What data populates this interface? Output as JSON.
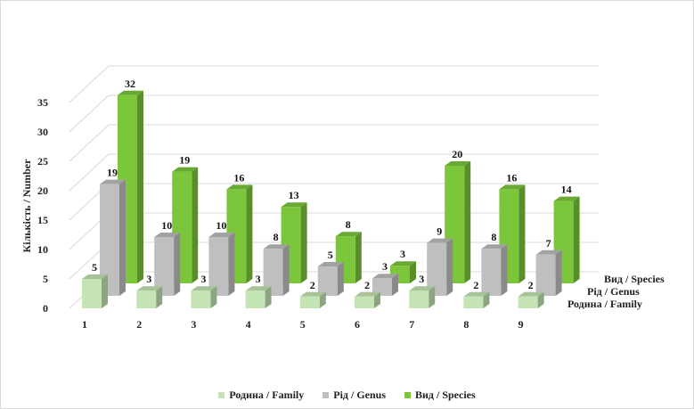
{
  "chart_data": {
    "type": "bar",
    "categories": [
      "1",
      "2",
      "3",
      "4",
      "5",
      "6",
      "7",
      "8",
      "9"
    ],
    "series": [
      {
        "name": "Родина / Family",
        "values": [
          5,
          3,
          3,
          3,
          2,
          2,
          3,
          2,
          2
        ],
        "color": "#c4e4b4"
      },
      {
        "name": "Рід / Genus",
        "values": [
          19,
          10,
          10,
          8,
          5,
          3,
          9,
          8,
          7
        ],
        "color": "#bfbfbf"
      },
      {
        "name": "Вид / Species",
        "values": [
          32,
          19,
          16,
          13,
          8,
          3,
          20,
          16,
          14
        ],
        "color": "#7cc63c"
      }
    ],
    "y_ticks": [
      "0",
      "5",
      "10",
      "15",
      "20",
      "25",
      "30",
      "35"
    ],
    "ylim": [
      0,
      35
    ],
    "ylabel": "Кількість / Number",
    "depth_labels": [
      "Вид / Species",
      "Рід / Genus",
      "Родина / Family"
    ],
    "legend": [
      "Родина / Family",
      "Рід / Genus",
      "Вид / Species"
    ],
    "legend_position": "bottom",
    "grid": true,
    "style": "3d-column"
  }
}
